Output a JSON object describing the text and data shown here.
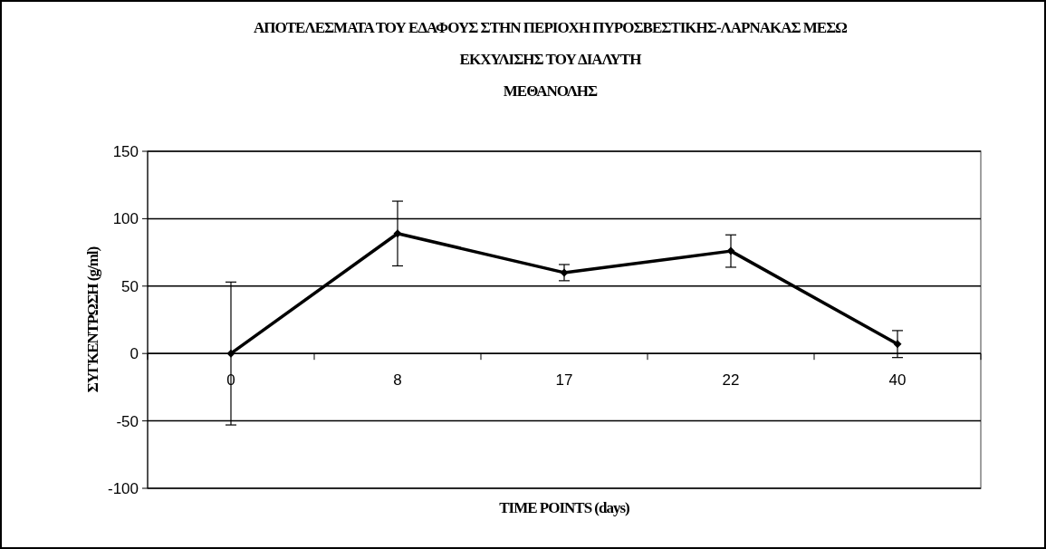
{
  "chart_data": {
    "type": "line",
    "title": "ΑΠΟΤΕΛΕΣΜΑΤΑ ΤΟΥ ΕΔΑΦΟΥΣ ΣΤΗΝ ΠΕΡΙΟΧΗ ΠΥΡΟΣΒΕΣΤΙΚΗΣ-ΛΑΡΝΑΚΑΣ ΜΕΣΩ\nΕΚΧΥΛΙΣΗΣ ΤΟΥ ΔΙΑΛΥΤΗ\nΜΕΘΑΝΟΛΗΣ",
    "xlabel": "TIME POINTS (days)",
    "ylabel": "ΣΥΓΚΕΝΤΡΩΣΗ (g/ml)",
    "categories": [
      "0",
      "8",
      "17",
      "22",
      "40"
    ],
    "series": [
      {
        "color": "#000000",
        "values": [
          0,
          89,
          60,
          76,
          7
        ],
        "errors": [
          53,
          24,
          6,
          12,
          10
        ]
      }
    ],
    "ylim": [
      -100,
      150
    ],
    "yticks": [
      -100,
      -50,
      0,
      50,
      100,
      150
    ],
    "grid": "y",
    "marker": "diamond",
    "line_style": "solid"
  }
}
